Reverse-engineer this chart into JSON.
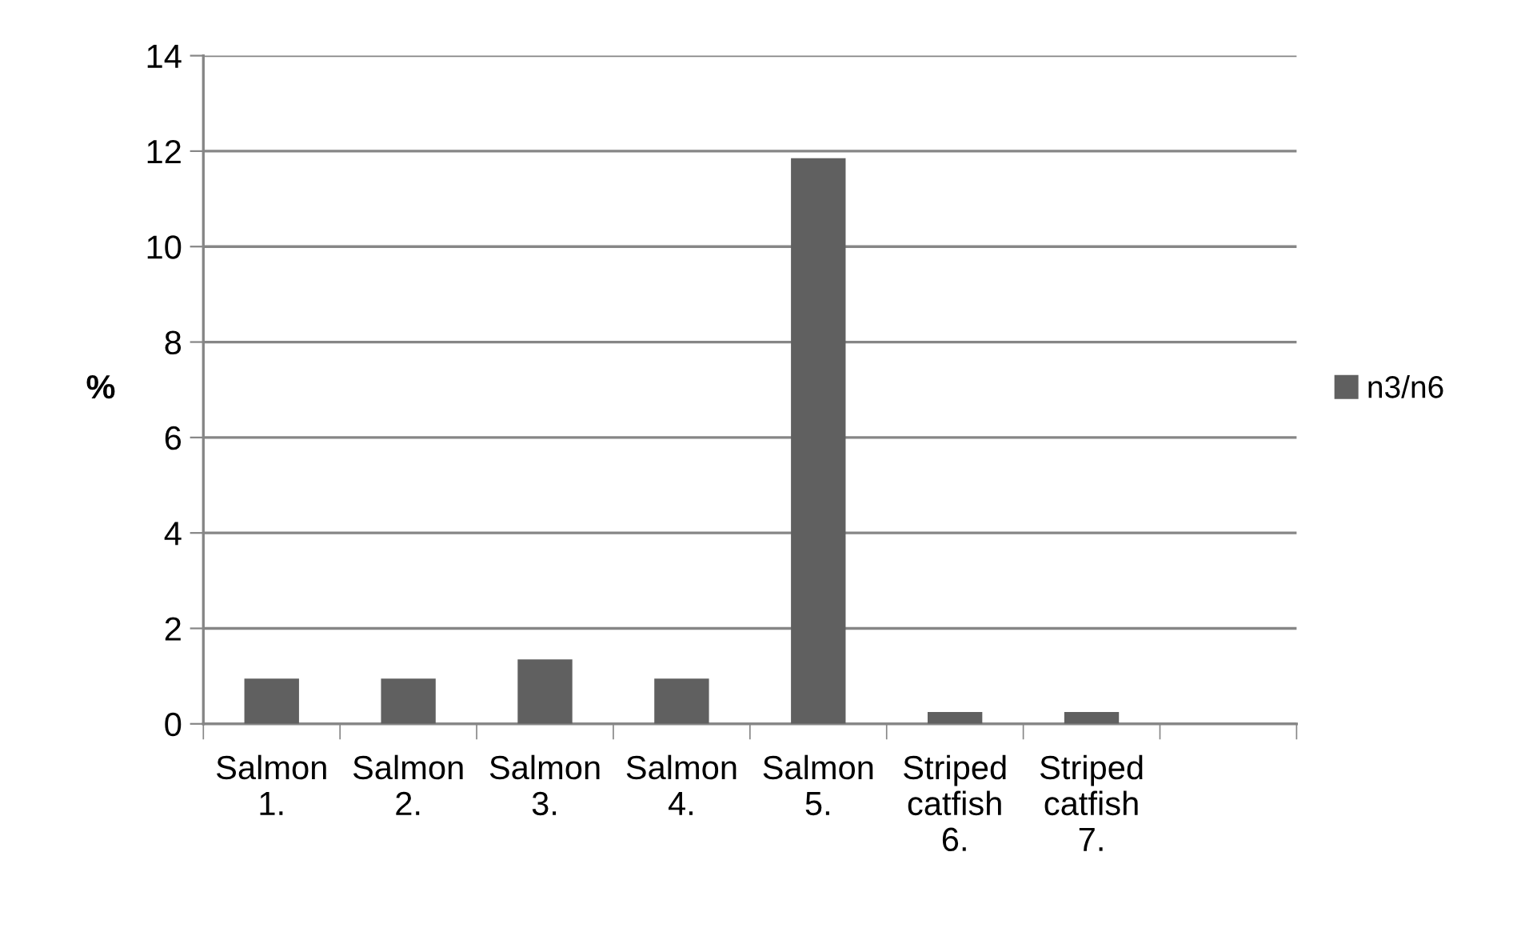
{
  "chart_data": {
    "type": "bar",
    "ylabel": "%",
    "categories": [
      "Salmon\n1.",
      "Salmon\n2.",
      "Salmon\n3.",
      "Salmon\n4.",
      "Salmon\n5.",
      "Striped\ncatfish\n6.",
      "Striped\ncatfish\n7.",
      null
    ],
    "series": [
      {
        "name": "n3/n6",
        "color": "#606060",
        "values": [
          0.95,
          0.95,
          1.35,
          0.95,
          11.85,
          0.25,
          0.25,
          null
        ]
      }
    ],
    "ylim": [
      0,
      14
    ],
    "yticks": [
      0,
      2,
      4,
      6,
      8,
      10,
      12,
      14
    ],
    "grid": "y",
    "legend": "right"
  }
}
